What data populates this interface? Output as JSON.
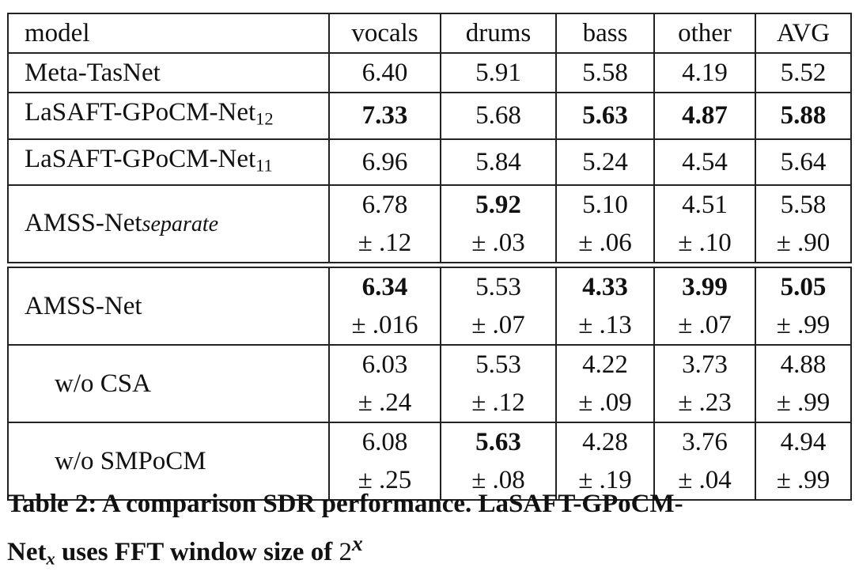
{
  "table": {
    "headers": [
      "model",
      "vocals",
      "drums",
      "bass",
      "other",
      "AVG"
    ],
    "rows": [
      {
        "model": "Meta-TasNet",
        "sub": "",
        "cells": [
          {
            "v": "6.40"
          },
          {
            "v": "5.91"
          },
          {
            "v": "5.58"
          },
          {
            "v": "4.19"
          },
          {
            "v": "5.52"
          }
        ]
      },
      {
        "model": "LaSAFT-GPoCM-Net",
        "sub": "12",
        "cells": [
          {
            "v": "7.33",
            "bold": true
          },
          {
            "v": "5.68"
          },
          {
            "v": "5.63",
            "bold": true
          },
          {
            "v": "4.87",
            "bold": true
          },
          {
            "v": "5.88",
            "bold": true
          }
        ]
      },
      {
        "model": "LaSAFT-GPoCM-Net",
        "sub": "11",
        "cells": [
          {
            "v": "6.96"
          },
          {
            "v": "5.84"
          },
          {
            "v": "5.24"
          },
          {
            "v": "4.54"
          },
          {
            "v": "5.64"
          }
        ]
      },
      {
        "model": "AMSS-Net",
        "sub_italic": "separate",
        "cells": [
          {
            "v": "6.78",
            "pm": "± .12"
          },
          {
            "v": "5.92",
            "bold": true,
            "pm": "± .03"
          },
          {
            "v": "5.10",
            "pm": "± .06"
          },
          {
            "v": "4.51",
            "pm": "± .10"
          },
          {
            "v": "5.58",
            "pm": "± .90"
          }
        ]
      },
      {
        "model": "AMSS-Net",
        "cells": [
          {
            "v": "6.34",
            "bold": true,
            "pm": "± .016"
          },
          {
            "v": "5.53",
            "pm": "± .07"
          },
          {
            "v": "4.33",
            "bold": true,
            "pm": "± .13"
          },
          {
            "v": "3.99",
            "bold": true,
            "pm": "± .07"
          },
          {
            "v": "5.05",
            "bold": true,
            "pm": "± .99"
          }
        ]
      },
      {
        "model": "w/o CSA",
        "indent": true,
        "cells": [
          {
            "v": "6.03",
            "pm": "± .24"
          },
          {
            "v": "5.53",
            "pm": "± .12"
          },
          {
            "v": "4.22",
            "pm": "± .09"
          },
          {
            "v": "3.73",
            "pm": "± .23"
          },
          {
            "v": "4.88",
            "pm": "± .99"
          }
        ]
      },
      {
        "model": "w/o SMPoCM",
        "indent": true,
        "cells": [
          {
            "v": "6.08",
            "pm": "± .25"
          },
          {
            "v": "5.63",
            "bold": true,
            "pm": "± .08"
          },
          {
            "v": "4.28",
            "pm": "± .19"
          },
          {
            "v": "3.76",
            "pm": "± .04"
          },
          {
            "v": "4.94",
            "pm": "± .99"
          }
        ]
      }
    ]
  },
  "caption": {
    "line1": "Table 2: A comparison SDR performance. LaSAFT-GPoCM-",
    "line2_pre": "Net",
    "line2_sub": "x",
    "line2_mid": " uses FFT window size of ",
    "line2_base": "2",
    "line2_sup": "x"
  }
}
